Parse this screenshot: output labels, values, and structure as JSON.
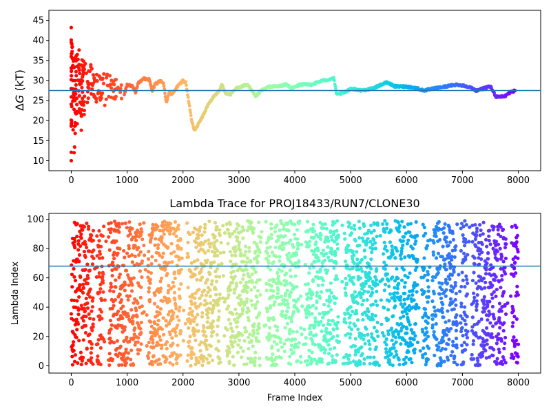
{
  "chart_data": [
    {
      "type": "scatter",
      "title": "",
      "xlabel": "",
      "ylabel": "ΔG (kT)",
      "ylabel_parts": {
        "delta": "Δ",
        "var": "G",
        "unit": " (kT)"
      },
      "xlim": [
        -400,
        8400
      ],
      "ylim": [
        7.5,
        47.5
      ],
      "xticks": [
        0,
        1000,
        2000,
        3000,
        4000,
        5000,
        6000,
        7000,
        8000
      ],
      "yticks": [
        10,
        15,
        20,
        25,
        30,
        35,
        40,
        45
      ],
      "hline": {
        "y": 27.5,
        "color": "#1f77b4"
      },
      "colormap": "rainbow (red at frame 0 → violet at frame 8000)",
      "grid": false,
      "series": [
        {
          "points": [
            [
              0,
              43.2
            ],
            [
              0,
              40.1
            ],
            [
              0,
              39.5
            ],
            [
              0,
              36.0
            ],
            [
              0,
              33.1
            ],
            [
              0,
              30.2
            ],
            [
              0,
              28.0
            ],
            [
              0,
              25.9
            ],
            [
              0,
              24.1
            ],
            [
              0,
              20.1
            ],
            [
              0,
              12.1
            ],
            [
              0,
              10.0
            ],
            [
              10,
              39.1
            ],
            [
              20,
              35.5
            ],
            [
              30,
              30.0
            ],
            [
              40,
              26.5
            ],
            [
              50,
              22.8
            ],
            [
              60,
              18.6
            ],
            [
              70,
              16.8
            ],
            [
              60,
              13.4
            ],
            [
              50,
              12.0
            ],
            [
              80,
              27.8
            ],
            [
              90,
              31.2
            ],
            [
              100,
              24.0
            ],
            [
              120,
              33.5
            ],
            [
              140,
              37.6
            ],
            [
              150,
              29.2
            ],
            [
              160,
              22.0
            ],
            [
              180,
              17.6
            ],
            [
              200,
              25.5
            ],
            [
              220,
              31.8
            ],
            [
              250,
              34.2
            ],
            [
              300,
              28.3
            ],
            [
              350,
              33.9
            ],
            [
              400,
              26.5
            ],
            [
              500,
              31.1
            ],
            [
              600,
              23.8
            ],
            [
              700,
              29.0
            ],
            [
              800,
              26.0
            ],
            [
              900,
              25.5
            ]
          ],
          "trace": [
            [
              950,
              26.5
            ],
            [
              1000,
              29.0
            ],
            [
              1100,
              28.5
            ],
            [
              1150,
              27.0
            ],
            [
              1200,
              29.5
            ],
            [
              1300,
              30.5
            ],
            [
              1400,
              30.2
            ],
            [
              1450,
              27.5
            ],
            [
              1500,
              29.0
            ],
            [
              1600,
              30.0
            ],
            [
              1650,
              29.5
            ],
            [
              1700,
              24.5
            ],
            [
              1750,
              27.0
            ],
            [
              1800,
              26.5
            ],
            [
              1900,
              28.5
            ],
            [
              2000,
              30.0
            ],
            [
              2050,
              29.5
            ],
            [
              2100,
              25.0
            ],
            [
              2150,
              20.5
            ],
            [
              2200,
              17.5
            ],
            [
              2250,
              18.5
            ],
            [
              2350,
              21.0
            ],
            [
              2450,
              24.0
            ],
            [
              2550,
              26.0
            ],
            [
              2650,
              27.5
            ],
            [
              2700,
              29.0
            ],
            [
              2750,
              27.0
            ],
            [
              2850,
              26.5
            ],
            [
              2950,
              28.0
            ],
            [
              3050,
              28.5
            ],
            [
              3150,
              29.0
            ],
            [
              3300,
              26.0
            ],
            [
              3400,
              27.5
            ],
            [
              3550,
              28.5
            ],
            [
              3700,
              28.5
            ],
            [
              3850,
              29.0
            ],
            [
              3950,
              28.0
            ],
            [
              4100,
              29.0
            ],
            [
              4300,
              29.0
            ],
            [
              4500,
              30.0
            ],
            [
              4700,
              30.5
            ],
            [
              4750,
              26.5
            ],
            [
              4900,
              27.0
            ],
            [
              5000,
              28.0
            ],
            [
              5200,
              27.5
            ],
            [
              5400,
              28.0
            ],
            [
              5550,
              29.0
            ],
            [
              5650,
              29.5
            ],
            [
              5800,
              28.5
            ],
            [
              6000,
              28.5
            ],
            [
              6200,
              28.0
            ],
            [
              6300,
              27.5
            ],
            [
              6500,
              28.0
            ],
            [
              6700,
              28.5
            ],
            [
              6900,
              29.0
            ],
            [
              7100,
              28.5
            ],
            [
              7250,
              27.5
            ],
            [
              7500,
              28.5
            ],
            [
              7600,
              26.0
            ],
            [
              7750,
              26.0
            ],
            [
              7850,
              27.0
            ],
            [
              7950,
              27.5
            ]
          ]
        }
      ]
    },
    {
      "type": "scatter",
      "title": "Lambda Trace for PROJ18433/RUN7/CLONE30",
      "xlabel": "Frame Index",
      "ylabel": "Lambda Index",
      "xlim": [
        -400,
        8400
      ],
      "ylim": [
        -5,
        104
      ],
      "xticks": [
        0,
        1000,
        2000,
        3000,
        4000,
        5000,
        6000,
        7000,
        8000
      ],
      "yticks": [
        0,
        20,
        40,
        60,
        80,
        100
      ],
      "hline": {
        "y": 68,
        "color": "#1f77b4"
      },
      "colormap": "rainbow (red at frame 0 → violet at frame 8000)",
      "grid": false,
      "series": [
        {
          "frame_range": [
            0,
            8000
          ],
          "lambda_range": [
            0,
            99
          ]
        }
      ]
    }
  ]
}
